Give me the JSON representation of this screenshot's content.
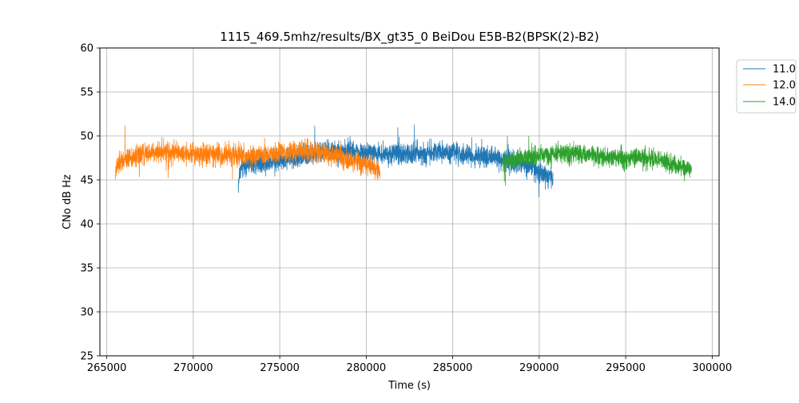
{
  "chart_data": {
    "type": "line",
    "title": "1115_469.5mhz/results/BX_gt35_0 BeiDou E5B-B2(BPSK(2)-B2)",
    "xlabel": "Time (s)",
    "ylabel": "CNo dB Hz",
    "xlim": [
      264600,
      300400
    ],
    "ylim": [
      25,
      60
    ],
    "x_ticks": [
      265000,
      270000,
      275000,
      280000,
      285000,
      290000,
      295000,
      300000
    ],
    "x_tick_labels": [
      "265000",
      "270000",
      "275000",
      "280000",
      "285000",
      "290000",
      "295000",
      "300000"
    ],
    "y_ticks": [
      25,
      30,
      35,
      40,
      45,
      50,
      55,
      60
    ],
    "y_tick_labels": [
      "25",
      "30",
      "35",
      "40",
      "45",
      "50",
      "55",
      "60"
    ],
    "grid": true,
    "legend_position": "outside-top-right",
    "series": [
      {
        "name": "11.0",
        "color": "#1f77b4",
        "noise": 0.6,
        "x": [
          272600,
          272700,
          273000,
          274000,
          275000,
          276000,
          277000,
          277500,
          278000,
          279000,
          280000,
          281000,
          282000,
          283000,
          284000,
          285000,
          286000,
          287000,
          288000,
          289000,
          289500,
          290000,
          290300,
          290600,
          290800
        ],
        "y": [
          44.5,
          46.0,
          46.8,
          47.0,
          47.3,
          47.6,
          47.9,
          48.2,
          48.3,
          48.3,
          48.1,
          48.0,
          47.9,
          48.0,
          48.1,
          48.0,
          47.8,
          47.6,
          47.4,
          47.0,
          46.6,
          46.0,
          45.6,
          45.2,
          45.0
        ]
      },
      {
        "name": "12.0",
        "color": "#ff7f0e",
        "noise": 0.6,
        "x": [
          265500,
          265600,
          266000,
          267000,
          268000,
          269000,
          270000,
          271000,
          272000,
          273000,
          274000,
          275000,
          276000,
          277000,
          278000,
          279000,
          280000,
          280500,
          280800
        ],
        "y": [
          45.5,
          46.6,
          47.3,
          47.9,
          48.2,
          48.2,
          48.1,
          47.9,
          47.8,
          47.7,
          47.8,
          48.0,
          48.3,
          48.2,
          47.8,
          47.3,
          46.8,
          46.3,
          46.0
        ]
      },
      {
        "name": "14.0",
        "color": "#2ca02c",
        "noise": 0.55,
        "x": [
          287900,
          288000,
          288500,
          289000,
          289500,
          290000,
          291000,
          292000,
          293000,
          294000,
          295000,
          296000,
          297000,
          297500,
          298000,
          298500,
          298800
        ],
        "y": [
          46.5,
          47.0,
          47.2,
          47.5,
          47.6,
          47.8,
          48.0,
          48.0,
          47.8,
          47.6,
          47.5,
          47.4,
          47.2,
          46.9,
          46.6,
          46.3,
          46.0
        ]
      }
    ]
  }
}
